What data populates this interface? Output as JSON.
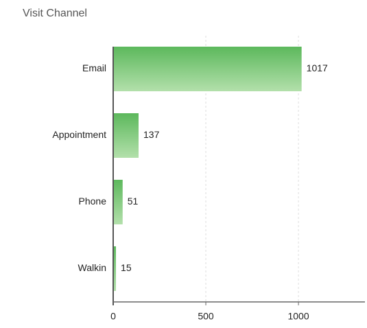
{
  "chart_data": {
    "type": "hbar",
    "title": "Visit Channel",
    "categories": [
      "Email",
      "Appointment",
      "Phone",
      "Walkin"
    ],
    "values": [
      1017,
      137,
      51,
      15
    ],
    "color": "#5cb85c",
    "xlim": [
      0,
      1370
    ],
    "xticks": [
      0,
      500,
      1000
    ],
    "grid": true
  }
}
